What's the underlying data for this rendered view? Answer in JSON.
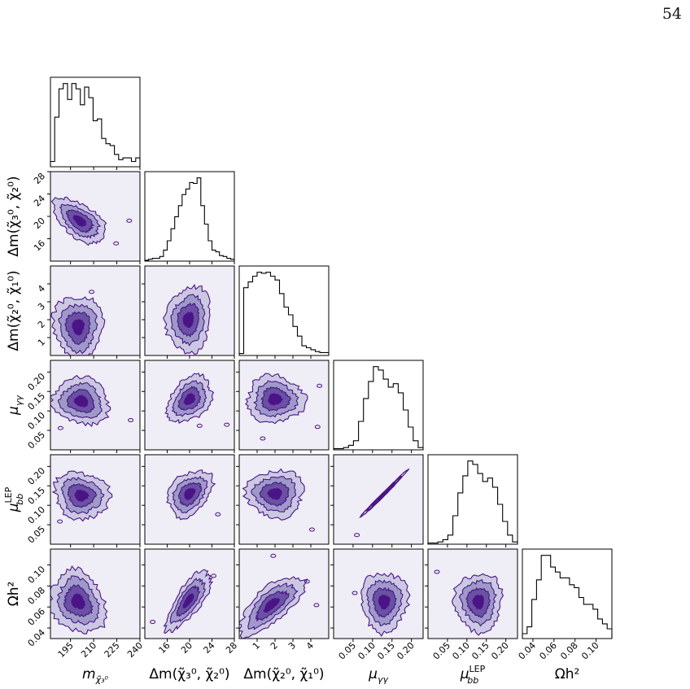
{
  "page": {
    "number": "54"
  },
  "colors": {
    "contour_dark": "#4a1486",
    "fill_level_1": "#efedf5",
    "fill_level_2": "#cbc9e2",
    "fill_level_3": "#9e9ac8",
    "fill_level_4": "#6a51a3",
    "fill_level_5": "#4a1486",
    "histogram": "#000000"
  },
  "chart_data": {
    "type": "corner",
    "parameters": [
      {
        "name": "m_chi3",
        "label": "m",
        "label_sub": "χ̃₃⁰",
        "range": [
          182,
          240
        ],
        "ticks": [
          "195",
          "210",
          "225",
          "240"
        ],
        "tick_values": [
          195,
          210,
          225,
          240
        ]
      },
      {
        "name": "dm_chi3_chi2",
        "label": "Δm(χ̃₃⁰, χ̃₂⁰)",
        "label_sub": "",
        "range": [
          12,
          28
        ],
        "ticks": [
          "16",
          "20",
          "24",
          "28"
        ],
        "tick_values": [
          16,
          20,
          24,
          28
        ]
      },
      {
        "name": "dm_chi2_chi1",
        "label": "Δm(χ̃₂⁰, χ̃₁⁰)",
        "label_sub": "",
        "range": [
          0,
          5
        ],
        "ticks": [
          "1",
          "2",
          "3",
          "4"
        ],
        "tick_values": [
          1,
          2,
          3,
          4
        ]
      },
      {
        "name": "mu_gg",
        "label": "μ",
        "label_sub": "γγ",
        "range": [
          0,
          0.23
        ],
        "ticks": [
          "0.05",
          "0.10",
          "0.15",
          "0.20"
        ],
        "tick_values": [
          0.05,
          0.1,
          0.15,
          0.2
        ]
      },
      {
        "name": "mu_bb_lep",
        "label": "μ",
        "label_sub": "bb",
        "label_sup": "LEP",
        "range": [
          0,
          0.23
        ],
        "ticks": [
          "0.05",
          "0.10",
          "0.15",
          "0.20"
        ],
        "tick_values": [
          0.05,
          0.1,
          0.15,
          0.2
        ]
      },
      {
        "name": "omega_h2",
        "label": "Ωh²",
        "label_sub": "",
        "range": [
          0.03,
          0.115
        ],
        "ticks": [
          "0.04",
          "0.06",
          "0.08",
          "0.10"
        ],
        "tick_values": [
          0.04,
          0.06,
          0.08,
          0.1
        ]
      }
    ],
    "histograms": [
      {
        "param": "m_chi3",
        "counts": [
          3,
          28,
          44,
          47,
          38,
          47,
          44,
          35,
          45,
          39,
          26,
          27,
          16,
          13,
          12,
          7,
          4,
          5,
          5,
          3,
          5
        ]
      },
      {
        "param": "dm_chi3_chi2",
        "counts": [
          1,
          2,
          3,
          3,
          5,
          12,
          22,
          35,
          48,
          60,
          72,
          78,
          85,
          84,
          90,
          60,
          40,
          22,
          12,
          10,
          6,
          5,
          3,
          2
        ]
      },
      {
        "param": "dm_chi2_chi1",
        "counts": [
          2,
          70,
          76,
          82,
          86,
          85,
          86,
          82,
          78,
          64,
          50,
          42,
          30,
          20,
          10,
          8,
          6,
          4,
          3,
          3
        ]
      },
      {
        "param": "mu_gg",
        "counts": [
          1,
          1,
          2,
          4,
          8,
          25,
          45,
          60,
          73,
          70,
          62,
          55,
          58,
          50,
          35,
          20,
          8,
          2
        ]
      },
      {
        "param": "mu_bb_lep",
        "counts": [
          1,
          1,
          2,
          4,
          8,
          25,
          45,
          60,
          73,
          70,
          62,
          55,
          58,
          50,
          35,
          20,
          8,
          2
        ]
      },
      {
        "param": "omega_h2",
        "counts": [
          5,
          12,
          40,
          60,
          85,
          85,
          73,
          68,
          62,
          62,
          55,
          52,
          42,
          35,
          35,
          30,
          20,
          15,
          10
        ]
      }
    ],
    "contour_levels": [
      "0.118",
      "0.393",
      "0.675",
      "0.864"
    ],
    "pair_centers": [
      {
        "x": "m_chi3",
        "y": "dm_chi3_chi2",
        "mean": [
          201,
          19.2
        ],
        "sd": [
          8.5,
          2.0
        ],
        "corr": -0.55
      },
      {
        "x": "m_chi3",
        "y": "dm_chi2_chi1",
        "mean": [
          200,
          1.6
        ],
        "sd": [
          8,
          0.9
        ],
        "corr": 0.0
      },
      {
        "x": "dm_chi3_chi2",
        "y": "dm_chi2_chi1",
        "mean": [
          19.8,
          2.0
        ],
        "sd": [
          2.0,
          0.9
        ],
        "corr": 0.1
      },
      {
        "x": "m_chi3",
        "y": "mu_gg",
        "mean": [
          202,
          0.125
        ],
        "sd": [
          9,
          0.03
        ],
        "corr": -0.1
      },
      {
        "x": "dm_chi3_chi2",
        "y": "mu_gg",
        "mean": [
          20.0,
          0.13
        ],
        "sd": [
          2.0,
          0.03
        ],
        "corr": 0.35
      },
      {
        "x": "dm_chi2_chi1",
        "y": "mu_gg",
        "mean": [
          2.0,
          0.13
        ],
        "sd": [
          0.8,
          0.03
        ],
        "corr": 0.0
      },
      {
        "x": "m_chi3",
        "y": "mu_bb_lep",
        "mean": [
          202,
          0.125
        ],
        "sd": [
          9,
          0.03
        ],
        "corr": -0.1
      },
      {
        "x": "dm_chi3_chi2",
        "y": "mu_bb_lep",
        "mean": [
          20.0,
          0.13
        ],
        "sd": [
          2.0,
          0.03
        ],
        "corr": 0.35
      },
      {
        "x": "dm_chi2_chi1",
        "y": "mu_bb_lep",
        "mean": [
          2.0,
          0.13
        ],
        "sd": [
          0.8,
          0.03
        ],
        "corr": 0.0
      },
      {
        "x": "mu_gg",
        "y": "mu_bb_lep",
        "mean": [
          0.128,
          0.128
        ],
        "sd": [
          0.03,
          0.03
        ],
        "corr": 0.995
      },
      {
        "x": "m_chi3",
        "y": "omega_h2",
        "mean": [
          200,
          0.065
        ],
        "sd": [
          9,
          0.015
        ],
        "corr": -0.2
      },
      {
        "x": "dm_chi3_chi2",
        "y": "omega_h2",
        "mean": [
          19.8,
          0.066
        ],
        "sd": [
          2.0,
          0.014
        ],
        "corr": 0.75
      },
      {
        "x": "dm_chi2_chi1",
        "y": "omega_h2",
        "mean": [
          1.8,
          0.062
        ],
        "sd": [
          0.9,
          0.014
        ],
        "corr": 0.72
      },
      {
        "x": "mu_gg",
        "y": "omega_h2",
        "mean": [
          0.13,
          0.065
        ],
        "sd": [
          0.03,
          0.014
        ],
        "corr": 0.0
      },
      {
        "x": "mu_bb_lep",
        "y": "omega_h2",
        "mean": [
          0.13,
          0.065
        ],
        "sd": [
          0.03,
          0.014
        ],
        "corr": 0.0
      }
    ]
  }
}
